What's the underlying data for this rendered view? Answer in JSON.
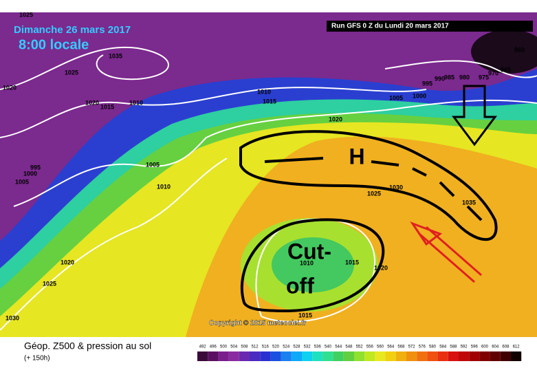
{
  "header": {
    "date": "Dimanche 26 mars 2017",
    "time": "8:00 locale",
    "run": "Run GFS 0 Z du Lundi 20 mars 2017"
  },
  "annotations": {
    "high": "H",
    "cutoff_1": "Cut-",
    "cutoff_2": "off"
  },
  "copyright": "Copyright © 2015 meteociel.fr",
  "footer": {
    "title": "Géop. Z500 & pression au sol",
    "lead": "(+ 150h)"
  },
  "isobars": [
    1025,
    1035,
    1025,
    1020,
    1020,
    1015,
    1010,
    995,
    1000,
    1005,
    1010,
    1005,
    1010,
    1015,
    1020,
    1005,
    1000,
    995,
    990,
    985,
    980,
    975,
    970,
    965,
    960,
    1030,
    1025,
    1035,
    1010,
    1015,
    1020,
    1020,
    1025,
    1030,
    1015
  ],
  "legend": {
    "items": [
      {
        "value": 492,
        "color": "#3a0a3a"
      },
      {
        "value": 496,
        "color": "#5a1060"
      },
      {
        "value": 500,
        "color": "#7a1e8c"
      },
      {
        "value": 504,
        "color": "#8a2aa0"
      },
      {
        "value": 508,
        "color": "#6a28b0"
      },
      {
        "value": 512,
        "color": "#4a2ac0"
      },
      {
        "value": 516,
        "color": "#2a30d0"
      },
      {
        "value": 520,
        "color": "#1a50e0"
      },
      {
        "value": 524,
        "color": "#1a80f0"
      },
      {
        "value": 528,
        "color": "#10a8f8"
      },
      {
        "value": 532,
        "color": "#10d0f0"
      },
      {
        "value": 536,
        "color": "#20e0c0"
      },
      {
        "value": 540,
        "color": "#30e090"
      },
      {
        "value": 544,
        "color": "#40d060"
      },
      {
        "value": 548,
        "color": "#60d040"
      },
      {
        "value": 552,
        "color": "#90e030"
      },
      {
        "value": 556,
        "color": "#c0e820"
      },
      {
        "value": 560,
        "color": "#e8e820"
      },
      {
        "value": 564,
        "color": "#f0d010"
      },
      {
        "value": 568,
        "color": "#f0b010"
      },
      {
        "value": 572,
        "color": "#f09010"
      },
      {
        "value": 576,
        "color": "#f07010"
      },
      {
        "value": 580,
        "color": "#f05010"
      },
      {
        "value": 584,
        "color": "#e83010"
      },
      {
        "value": 588,
        "color": "#d81010"
      },
      {
        "value": 592,
        "color": "#c00808"
      },
      {
        "value": 596,
        "color": "#a00000"
      },
      {
        "value": 600,
        "color": "#800000"
      },
      {
        "value": 604,
        "color": "#600000"
      },
      {
        "value": 608,
        "color": "#400000"
      },
      {
        "value": 612,
        "color": "#100000"
      }
    ]
  }
}
